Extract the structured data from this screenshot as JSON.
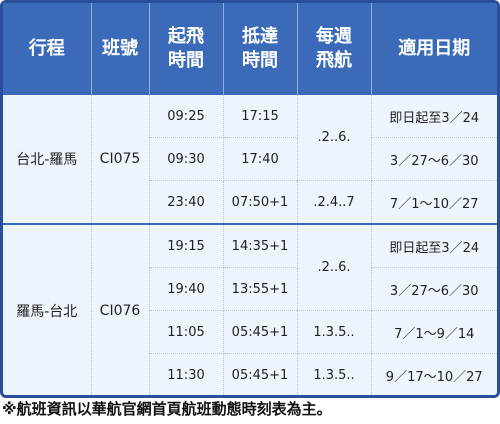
{
  "table": {
    "headers": [
      [
        "行程"
      ],
      [
        "班號"
      ],
      [
        "起飛",
        "時間"
      ],
      [
        "抵達",
        "時間"
      ],
      [
        "每週",
        "飛航"
      ],
      [
        "適用日期"
      ]
    ],
    "groups": [
      {
        "route": "台北-羅馬",
        "flight": "CI075",
        "rows": [
          {
            "dep": "09:25",
            "arr": "17:15",
            "days": ".2..6.",
            "period": "即日起至3／24"
          },
          {
            "dep": "09:30",
            "arr": "17:40",
            "days": "",
            "period": "3／27～6／30"
          },
          {
            "dep": "23:40",
            "arr": "07:50+1",
            "days": ".2.4..7",
            "period": "7／1～10／27"
          }
        ]
      },
      {
        "route": "羅馬-台北",
        "flight": "CI076",
        "rows": [
          {
            "dep": "19:15",
            "arr": "14:35+1",
            "days": ".2..6.",
            "period": "即日起至3／24"
          },
          {
            "dep": "19:40",
            "arr": "13:55+1",
            "days": "",
            "period": "3／27～6／30"
          },
          {
            "dep": "11:05",
            "arr": "05:45+1",
            "days": "1.3.5..",
            "period": "7／1～9／14"
          },
          {
            "dep": "11:30",
            "arr": "05:45+1",
            "days": "1.3.5..",
            "period": "9／17～10／27"
          }
        ]
      }
    ]
  },
  "footnote": "※航班資訊以華航官網首頁航班動態時刻表為主。"
}
